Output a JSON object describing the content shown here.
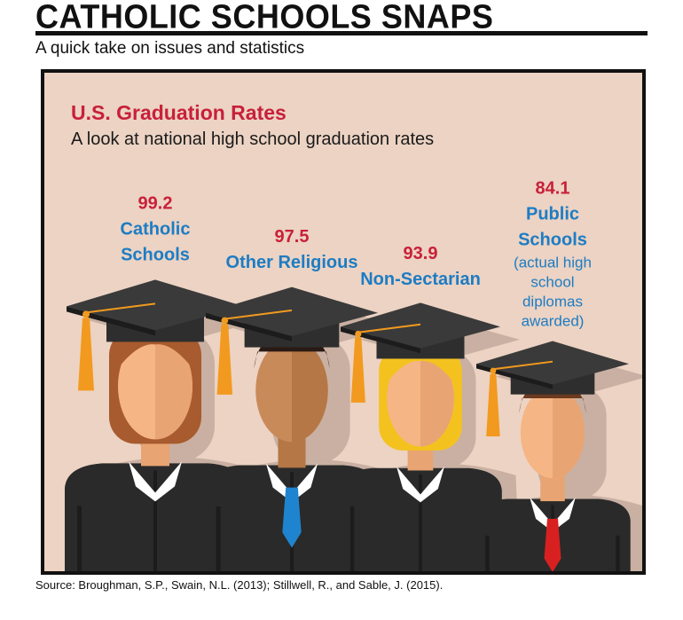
{
  "header": {
    "title": "CATHOLIC SCHOOLS SNAPS",
    "subtitle": "A quick take on issues and statistics"
  },
  "chart_data": {
    "type": "bar",
    "title": "U.S. Graduation Rates",
    "subtitle": "A look at national high school graduation rates",
    "unit": "%",
    "categories": [
      "Catholic Schools",
      "Other Religious",
      "Non-Sectarian",
      "Public Schools"
    ],
    "values": [
      99.2,
      97.5,
      93.9,
      84.1
    ],
    "label_lines": [
      [
        "Catholic",
        "Schools"
      ],
      [
        "Other Religious"
      ],
      [
        "Non-Sectarian"
      ],
      [
        "Public",
        "Schools"
      ]
    ],
    "notes": [
      [],
      [],
      [],
      [
        "(actual high",
        "school",
        "diplomas",
        "awarded)"
      ]
    ],
    "ylim": [
      80,
      100
    ],
    "grid": false,
    "legend": "none",
    "colors": {
      "value": "#c8203a",
      "label": "#1d7cc4",
      "note": "#1d7cc4",
      "background": "#ecd3c3",
      "shadow": "#c9b0a2",
      "gown": "#2a2a2a",
      "gown_dark": "#1c1c1c",
      "cap": "#2e2e2e",
      "cap_top": "#3a3a3a",
      "tassel": "#f29a1f",
      "collar": "#ffffff"
    },
    "figures": [
      {
        "skin": "#f5b585",
        "skin_shade": "#e8a472",
        "hair": "#a85b2f",
        "tie": ""
      },
      {
        "skin": "#c98a5a",
        "skin_shade": "#b57745",
        "hair": "#2a1a14",
        "tie": "#1f84cf"
      },
      {
        "skin": "#f5b585",
        "skin_shade": "#e8a472",
        "hair": "#f4c21f",
        "tie": ""
      },
      {
        "skin": "#f5b585",
        "skin_shade": "#e8a472",
        "hair": "#6b3a1f",
        "tie": "#d82020"
      }
    ]
  },
  "source": "Source:  Broughman, S.P., Swain, N.L. (2013); Stillwell, R., and Sable, J. (2015)."
}
